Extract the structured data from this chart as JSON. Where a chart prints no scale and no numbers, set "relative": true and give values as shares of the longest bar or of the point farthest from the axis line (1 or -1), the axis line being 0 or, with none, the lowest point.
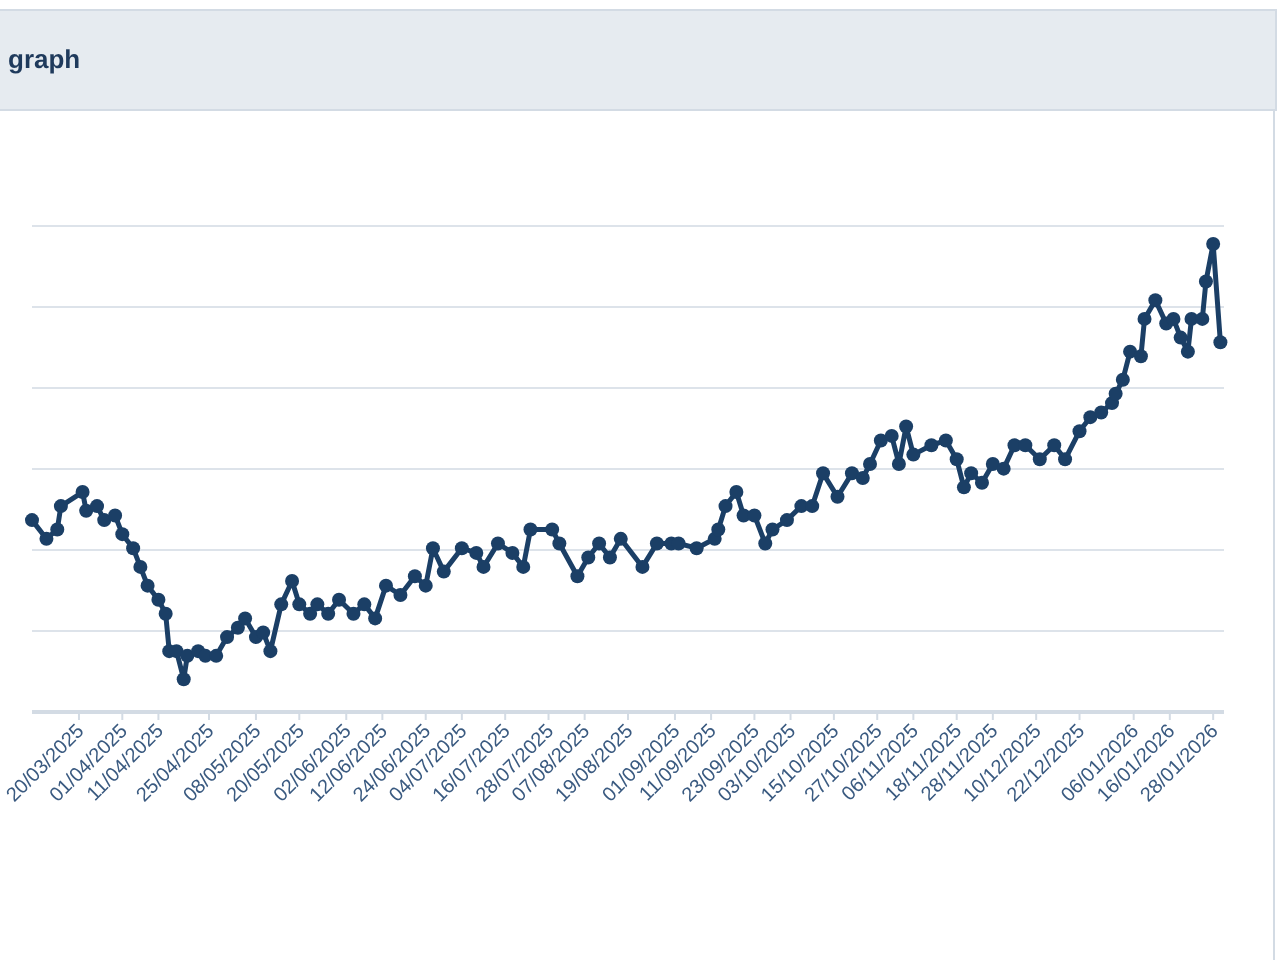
{
  "chart_data": {
    "type": "line",
    "title": "graph",
    "relative": true,
    "grid": true,
    "marker": "circle",
    "line_style": "solid",
    "tick_labels": "x",
    "xlim": [
      "2025-03-07",
      "2026-01-31"
    ],
    "xticks": [
      {
        "value": "2025-03-20",
        "label": "20/03/2025"
      },
      {
        "value": "2025-04-01",
        "label": "01/04/2025"
      },
      {
        "value": "2025-04-11",
        "label": "11/04/2025"
      },
      {
        "value": "2025-04-25",
        "label": "25/04/2025"
      },
      {
        "value": "2025-05-08",
        "label": "08/05/2025"
      },
      {
        "value": "2025-05-20",
        "label": "20/05/2025"
      },
      {
        "value": "2025-06-02",
        "label": "02/06/2025"
      },
      {
        "value": "2025-06-12",
        "label": "12/06/2025"
      },
      {
        "value": "2025-06-24",
        "label": "24/06/2025"
      },
      {
        "value": "2025-07-04",
        "label": "04/07/2025"
      },
      {
        "value": "2025-07-16",
        "label": "16/07/2025"
      },
      {
        "value": "2025-07-28",
        "label": "28/07/2025"
      },
      {
        "value": "2025-08-07",
        "label": "07/08/2025"
      },
      {
        "value": "2025-08-19",
        "label": "19/08/2025"
      },
      {
        "value": "2025-09-01",
        "label": "01/09/2025"
      },
      {
        "value": "2025-09-11",
        "label": "11/09/2025"
      },
      {
        "value": "2025-09-23",
        "label": "23/09/2025"
      },
      {
        "value": "2025-10-03",
        "label": "03/10/2025"
      },
      {
        "value": "2025-10-15",
        "label": "15/10/2025"
      },
      {
        "value": "2025-10-27",
        "label": "27/10/2025"
      },
      {
        "value": "2025-11-06",
        "label": "06/11/2025"
      },
      {
        "value": "2025-11-18",
        "label": "18/11/2025"
      },
      {
        "value": "2025-11-28",
        "label": "28/11/2025"
      },
      {
        "value": "2025-12-10",
        "label": "10/12/2025"
      },
      {
        "value": "2025-12-22",
        "label": "22/12/2025"
      },
      {
        "value": "2026-01-06",
        "label": "06/01/2026"
      },
      {
        "value": "2026-01-16",
        "label": "16/01/2026"
      },
      {
        "value": "2026-01-28",
        "label": "28/01/2026"
      }
    ],
    "series": [
      {
        "color": "#1b3f66",
        "x": [
          "2025-03-07",
          "2025-03-11",
          "2025-03-14",
          "2025-03-15",
          "2025-03-21",
          "2025-03-22",
          "2025-03-25",
          "2025-03-27",
          "2025-03-30",
          "2025-04-01",
          "2025-04-04",
          "2025-04-06",
          "2025-04-08",
          "2025-04-11",
          "2025-04-13",
          "2025-04-14",
          "2025-04-16",
          "2025-04-18",
          "2025-04-19",
          "2025-04-22",
          "2025-04-24",
          "2025-04-27",
          "2025-04-30",
          "2025-05-03",
          "2025-05-05",
          "2025-05-08",
          "2025-05-10",
          "2025-05-12",
          "2025-05-15",
          "2025-05-18",
          "2025-05-20",
          "2025-05-23",
          "2025-05-25",
          "2025-05-28",
          "2025-05-31",
          "2025-06-04",
          "2025-06-07",
          "2025-06-10",
          "2025-06-13",
          "2025-06-17",
          "2025-06-21",
          "2025-06-24",
          "2025-06-26",
          "2025-06-29",
          "2025-07-04",
          "2025-07-08",
          "2025-07-10",
          "2025-07-14",
          "2025-07-18",
          "2025-07-21",
          "2025-07-23",
          "2025-07-29",
          "2025-07-31",
          "2025-08-05",
          "2025-08-08",
          "2025-08-11",
          "2025-08-14",
          "2025-08-17",
          "2025-08-23",
          "2025-08-27",
          "2025-08-31",
          "2025-09-02",
          "2025-09-07",
          "2025-09-12",
          "2025-09-13",
          "2025-09-15",
          "2025-09-18",
          "2025-09-20",
          "2025-09-23",
          "2025-09-26",
          "2025-09-28",
          "2025-10-02",
          "2025-10-06",
          "2025-10-09",
          "2025-10-12",
          "2025-10-16",
          "2025-10-20",
          "2025-10-23",
          "2025-10-25",
          "2025-10-28",
          "2025-10-31",
          "2025-11-02",
          "2025-11-04",
          "2025-11-06",
          "2025-11-11",
          "2025-11-15",
          "2025-11-18",
          "2025-11-20",
          "2025-11-22",
          "2025-11-25",
          "2025-11-28",
          "2025-12-01",
          "2025-12-04",
          "2025-12-07",
          "2025-12-11",
          "2025-12-15",
          "2025-12-18",
          "2025-12-22",
          "2025-12-25",
          "2025-12-28",
          "2025-12-31",
          "2026-01-01",
          "2026-01-03",
          "2026-01-05",
          "2026-01-08",
          "2026-01-09",
          "2026-01-12",
          "2026-01-15",
          "2026-01-17",
          "2026-01-19",
          "2026-01-21",
          "2026-01-22",
          "2026-01-25",
          "2026-01-26",
          "2026-01-28",
          "2026-01-30"
        ],
        "values": [
          0.41,
          0.37,
          0.39,
          0.44,
          0.47,
          0.43,
          0.44,
          0.41,
          0.42,
          0.38,
          0.35,
          0.31,
          0.27,
          0.24,
          0.21,
          0.13,
          0.13,
          0.07,
          0.12,
          0.13,
          0.12,
          0.12,
          0.16,
          0.18,
          0.2,
          0.16,
          0.17,
          0.13,
          0.23,
          0.28,
          0.23,
          0.21,
          0.23,
          0.21,
          0.24,
          0.21,
          0.23,
          0.2,
          0.27,
          0.25,
          0.29,
          0.27,
          0.35,
          0.3,
          0.35,
          0.34,
          0.31,
          0.36,
          0.34,
          0.31,
          0.39,
          0.39,
          0.36,
          0.29,
          0.33,
          0.36,
          0.33,
          0.37,
          0.31,
          0.36,
          0.36,
          0.36,
          0.35,
          0.37,
          0.39,
          0.44,
          0.47,
          0.42,
          0.42,
          0.36,
          0.39,
          0.41,
          0.44,
          0.44,
          0.51,
          0.46,
          0.51,
          0.5,
          0.53,
          0.58,
          0.59,
          0.53,
          0.61,
          0.55,
          0.57,
          0.58,
          0.54,
          0.48,
          0.51,
          0.49,
          0.53,
          0.52,
          0.57,
          0.57,
          0.54,
          0.57,
          0.54,
          0.6,
          0.63,
          0.64,
          0.66,
          0.68,
          0.71,
          0.77,
          0.76,
          0.84,
          0.88,
          0.83,
          0.84,
          0.8,
          0.77,
          0.84,
          0.84,
          0.92,
          1,
          0.79
        ]
      }
    ]
  }
}
